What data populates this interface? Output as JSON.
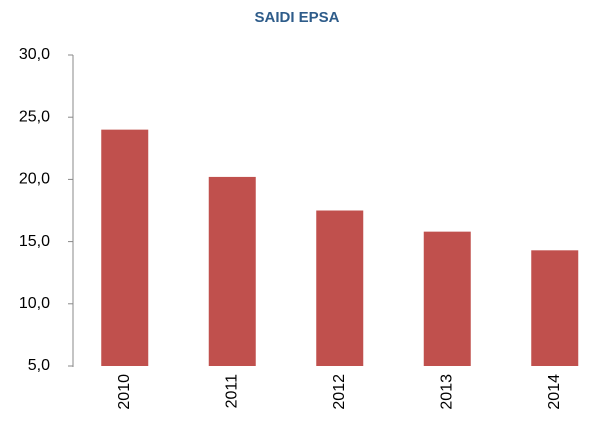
{
  "chart_data": {
    "type": "bar",
    "title": "SAIDI EPSA",
    "categories": [
      "2010",
      "2011",
      "2012",
      "2013",
      "2014"
    ],
    "values": [
      24.0,
      20.2,
      17.5,
      15.8,
      14.3
    ],
    "color": "#c0504d",
    "ylim": [
      5,
      30
    ],
    "yticks": [
      {
        "value": 5,
        "label": "5,0"
      },
      {
        "value": 10,
        "label": "10,0"
      },
      {
        "value": 15,
        "label": "15,0"
      },
      {
        "value": 20,
        "label": "20,0"
      },
      {
        "value": 25,
        "label": "25,0"
      },
      {
        "value": 30,
        "label": "30,0"
      }
    ],
    "grid": false
  }
}
